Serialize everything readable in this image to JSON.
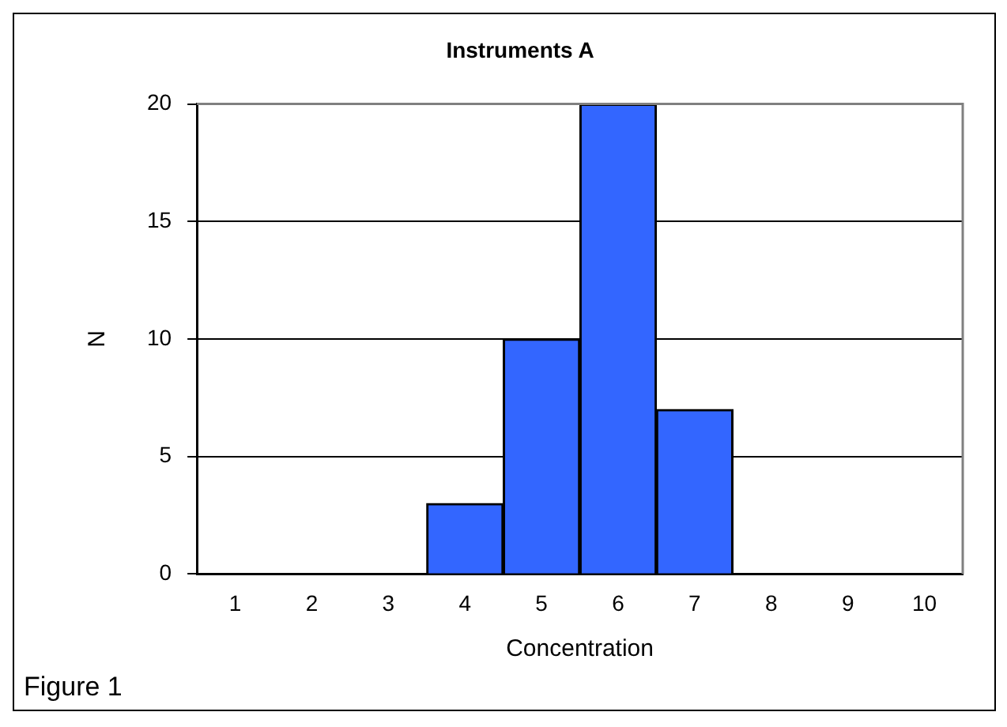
{
  "chart_data": {
    "type": "bar",
    "title": "Instruments A",
    "xlabel": "Concentration",
    "ylabel": "N",
    "annotations": [
      "Figure 1"
    ],
    "categories": [
      "1",
      "2",
      "3",
      "4",
      "5",
      "6",
      "7",
      "8",
      "9",
      "10"
    ],
    "values": [
      0,
      0,
      0,
      3,
      10,
      20,
      7,
      0,
      0,
      0
    ],
    "color": "#3366ff",
    "ylim": [
      0,
      20
    ],
    "yticks": [
      0,
      5,
      10,
      15,
      20
    ],
    "grid": "y",
    "legend": false
  }
}
